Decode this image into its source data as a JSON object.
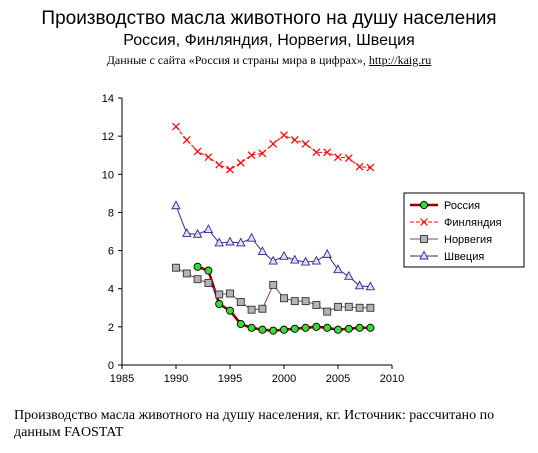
{
  "header": {
    "title": "Производство масла животного на душу населения",
    "subtitle": "Россия, Финляндия, Норвегия, Швеция",
    "source_prefix": "Данные с сайта «Россия и страны мира в цифрах», ",
    "source_link": "http://kaig.ru"
  },
  "caption": "Производство масла животного на душу населения, кг. Источник: рассчитано по данным FAOSTAT",
  "chart_data": {
    "type": "line",
    "title": "Производство масла животного на душу населения",
    "xlim": [
      1985,
      2010
    ],
    "ylim": [
      0,
      14
    ],
    "x_ticks": [
      1985,
      1990,
      1995,
      2000,
      2005,
      2010
    ],
    "y_ticks": [
      0,
      2,
      4,
      6,
      8,
      10,
      12,
      14
    ],
    "grid": false,
    "legend_position": "right",
    "series": [
      {
        "name": "Россия",
        "color": "#8b0000",
        "marker": "circle-green",
        "x": [
          1992,
          1993,
          1994,
          1995,
          1996,
          1997,
          1998,
          1999,
          2000,
          2001,
          2002,
          2003,
          2004,
          2005,
          2006,
          2007,
          2008
        ],
        "values": [
          5.15,
          4.95,
          3.2,
          2.85,
          2.15,
          1.95,
          1.85,
          1.8,
          1.85,
          1.9,
          1.95,
          2.0,
          1.95,
          1.85,
          1.9,
          1.95,
          1.95
        ]
      },
      {
        "name": "Финляндия",
        "color": "#ff0000",
        "marker": "x",
        "x": [
          1990,
          1991,
          1992,
          1993,
          1994,
          1995,
          1996,
          1997,
          1998,
          1999,
          2000,
          2001,
          2002,
          2003,
          2004,
          2005,
          2006,
          2007,
          2008
        ],
        "values": [
          12.5,
          11.8,
          11.2,
          10.9,
          10.5,
          10.25,
          10.6,
          11.0,
          11.1,
          11.6,
          12.05,
          11.8,
          11.6,
          11.15,
          11.15,
          10.9,
          10.85,
          10.4,
          10.35
        ]
      },
      {
        "name": "Норвегия",
        "color": "#7f3f7f",
        "marker": "square-gray",
        "x": [
          1990,
          1991,
          1992,
          1993,
          1994,
          1995,
          1996,
          1997,
          1998,
          1999,
          2000,
          2001,
          2002,
          2003,
          2004,
          2005,
          2006,
          2007,
          2008
        ],
        "values": [
          5.1,
          4.8,
          4.5,
          4.3,
          3.7,
          3.75,
          3.3,
          2.9,
          2.95,
          4.2,
          3.5,
          3.35,
          3.35,
          3.15,
          2.8,
          3.05,
          3.05,
          3.0,
          3.0
        ]
      },
      {
        "name": "Швеция",
        "color": "#2b2b8c",
        "marker": "triangle",
        "x": [
          1990,
          1991,
          1992,
          1993,
          1994,
          1995,
          1996,
          1997,
          1998,
          1999,
          2000,
          2001,
          2002,
          2003,
          2004,
          2005,
          2006,
          2007,
          2008
        ],
        "values": [
          8.35,
          6.9,
          6.85,
          7.1,
          6.4,
          6.45,
          6.4,
          6.65,
          5.95,
          5.45,
          5.7,
          5.5,
          5.4,
          5.45,
          5.8,
          5.0,
          4.65,
          4.15,
          4.1
        ]
      }
    ]
  }
}
